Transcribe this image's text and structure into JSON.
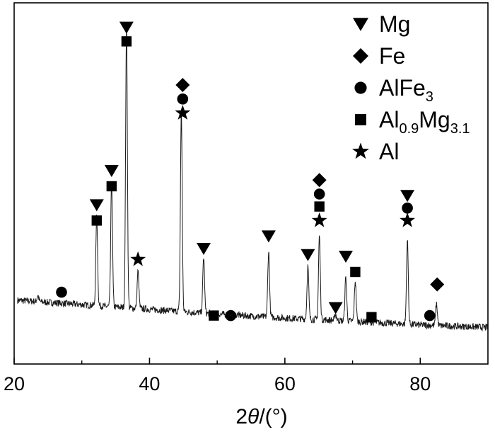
{
  "chart_data": {
    "type": "line",
    "title": "",
    "xlabel": {
      "prefix": "2",
      "italic": "θ",
      "suffix": "/(°)"
    },
    "ylabel": "",
    "xlim": [
      20,
      90
    ],
    "ylim": [
      0,
      1
    ],
    "x_ticks": [
      20,
      40,
      60,
      80
    ],
    "x_tick_labels": [
      "20",
      "40",
      "60",
      "80"
    ],
    "y_ticks_shown": false,
    "grid": false,
    "legend_position": "top-right",
    "baseline": [
      {
        "x": 20,
        "y": 0.11
      },
      {
        "x": 30,
        "y": 0.095
      },
      {
        "x": 40,
        "y": 0.08
      },
      {
        "x": 50,
        "y": 0.065
      },
      {
        "x": 60,
        "y": 0.052
      },
      {
        "x": 70,
        "y": 0.042
      },
      {
        "x": 80,
        "y": 0.03
      },
      {
        "x": 90,
        "y": 0.022
      }
    ],
    "peaks": [
      {
        "x": 23.5,
        "height": 0.02
      },
      {
        "x": 32.2,
        "height": 0.29
      },
      {
        "x": 34.4,
        "height": 0.4
      },
      {
        "x": 36.6,
        "height": 0.9
      },
      {
        "x": 38.3,
        "height": 0.12
      },
      {
        "x": 44.7,
        "height": 0.64
      },
      {
        "x": 48.0,
        "height": 0.18
      },
      {
        "x": 57.6,
        "height": 0.21
      },
      {
        "x": 63.4,
        "height": 0.17
      },
      {
        "x": 65.1,
        "height": 0.27
      },
      {
        "x": 67.5,
        "height": 0.02
      },
      {
        "x": 69.0,
        "height": 0.14
      },
      {
        "x": 70.4,
        "height": 0.13
      },
      {
        "x": 78.1,
        "height": 0.27
      },
      {
        "x": 82.4,
        "height": 0.07
      }
    ],
    "markers": [
      {
        "symbol": "triangle",
        "x": 36.6,
        "y": 0.985
      },
      {
        "symbol": "square",
        "x": 36.6,
        "y": 0.94
      },
      {
        "symbol": "triangle",
        "x": 34.4,
        "y": 0.525
      },
      {
        "symbol": "square",
        "x": 34.4,
        "y": 0.475
      },
      {
        "symbol": "triangle",
        "x": 32.2,
        "y": 0.415
      },
      {
        "symbol": "square",
        "x": 32.2,
        "y": 0.365
      },
      {
        "symbol": "circle",
        "x": 27.0,
        "y": 0.135
      },
      {
        "symbol": "star",
        "x": 38.3,
        "y": 0.24
      },
      {
        "symbol": "diamond",
        "x": 44.9,
        "y": 0.8
      },
      {
        "symbol": "circle",
        "x": 44.9,
        "y": 0.755
      },
      {
        "symbol": "star",
        "x": 44.9,
        "y": 0.71
      },
      {
        "symbol": "triangle",
        "x": 48.0,
        "y": 0.275
      },
      {
        "symbol": "square",
        "x": 49.5,
        "y": 0.06
      },
      {
        "symbol": "circle",
        "x": 52.0,
        "y": 0.06
      },
      {
        "symbol": "triangle",
        "x": 57.6,
        "y": 0.315
      },
      {
        "symbol": "triangle",
        "x": 63.4,
        "y": 0.255
      },
      {
        "symbol": "diamond",
        "x": 65.1,
        "y": 0.495
      },
      {
        "symbol": "circle",
        "x": 65.1,
        "y": 0.45
      },
      {
        "symbol": "square",
        "x": 65.1,
        "y": 0.41
      },
      {
        "symbol": "star",
        "x": 65.1,
        "y": 0.365
      },
      {
        "symbol": "triangle",
        "x": 67.5,
        "y": 0.085
      },
      {
        "symbol": "triangle",
        "x": 69.0,
        "y": 0.25
      },
      {
        "symbol": "square",
        "x": 70.4,
        "y": 0.2
      },
      {
        "symbol": "square",
        "x": 72.8,
        "y": 0.055
      },
      {
        "symbol": "triangle",
        "x": 78.1,
        "y": 0.445
      },
      {
        "symbol": "circle",
        "x": 78.1,
        "y": 0.405
      },
      {
        "symbol": "star",
        "x": 78.1,
        "y": 0.365
      },
      {
        "symbol": "circle",
        "x": 81.4,
        "y": 0.06
      },
      {
        "symbol": "diamond",
        "x": 82.5,
        "y": 0.16
      }
    ],
    "legend": [
      {
        "symbol": "triangle",
        "label": "Mg",
        "sub": "",
        "label2": "",
        "sub2": ""
      },
      {
        "symbol": "diamond",
        "label": "Fe",
        "sub": "",
        "label2": "",
        "sub2": ""
      },
      {
        "symbol": "circle",
        "label": "AlFe",
        "sub": "3",
        "label2": "",
        "sub2": ""
      },
      {
        "symbol": "square",
        "label": "Al",
        "sub": "0.9",
        "label2": "Mg",
        "sub2": "3.1"
      },
      {
        "symbol": "star",
        "label": "Al",
        "sub": "",
        "label2": "",
        "sub2": ""
      }
    ],
    "colors": {
      "line": "#1a1a1a",
      "marker": "#000000",
      "axis": "#000000",
      "background": "#ffffff"
    }
  }
}
